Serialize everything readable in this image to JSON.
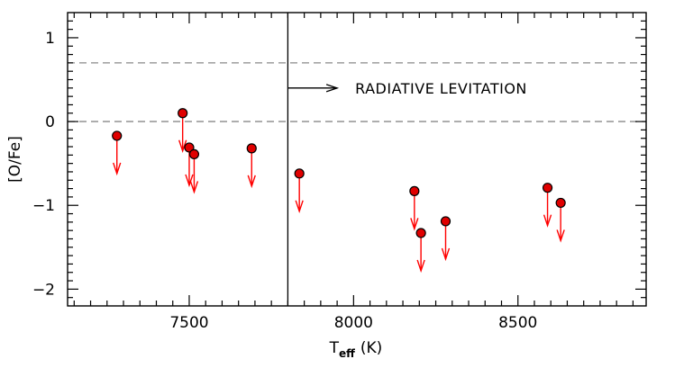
{
  "chart_data": {
    "type": "scatter",
    "title": "",
    "xlabel": "T",
    "xlabel_sub": "eff",
    "xlabel_unit": "(K)",
    "ylabel": "[O/Fe]",
    "xlim": [
      7130,
      8890
    ],
    "ylim": [
      -2.2,
      1.3
    ],
    "xticks": [
      7500,
      8000,
      8500
    ],
    "xtick_labels": [
      "7500",
      "8000",
      "8500"
    ],
    "yticks": [
      1,
      0,
      -1,
      -2
    ],
    "ytick_labels": [
      "1",
      "0",
      "−1",
      "−2"
    ],
    "reference_lines": [
      {
        "orientation": "horizontal",
        "y": 0.7,
        "style": "dashed"
      },
      {
        "orientation": "horizontal",
        "y": 0.0,
        "style": "dashed"
      },
      {
        "orientation": "vertical",
        "x": 7800,
        "style": "solid"
      }
    ],
    "annotation": {
      "text": "RADIATIVE LEVITATION",
      "arrow_from_x": 7800,
      "arrow_to_x": 7950,
      "y": 0.4
    },
    "series": [
      {
        "name": "upper limits",
        "marker": "circle",
        "marker_color": "#e00000",
        "upper_limit_arrows": true,
        "points": [
          {
            "x": 7280,
            "y": -0.17
          },
          {
            "x": 7480,
            "y": 0.1
          },
          {
            "x": 7500,
            "y": -0.31
          },
          {
            "x": 7515,
            "y": -0.39
          },
          {
            "x": 7690,
            "y": -0.32
          },
          {
            "x": 7835,
            "y": -0.62
          },
          {
            "x": 8185,
            "y": -0.83
          },
          {
            "x": 8205,
            "y": -1.33
          },
          {
            "x": 8280,
            "y": -1.19
          },
          {
            "x": 8590,
            "y": -0.79
          },
          {
            "x": 8630,
            "y": -0.97
          }
        ]
      }
    ]
  }
}
